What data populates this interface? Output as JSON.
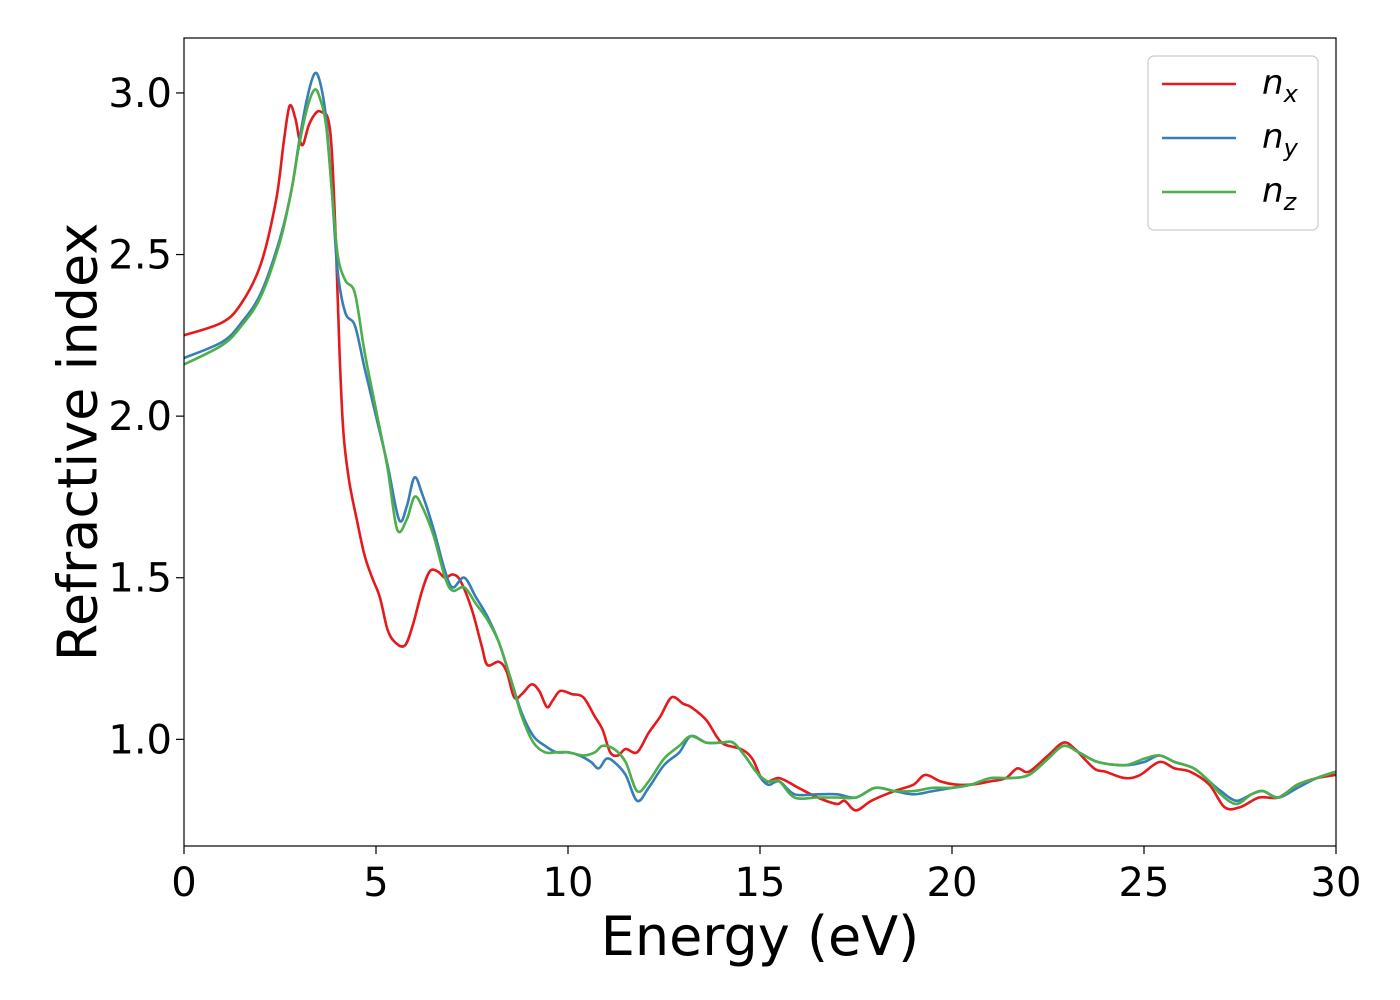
{
  "chart_data": {
    "type": "line",
    "xlabel": "Energy (eV)",
    "ylabel": "Refractive index",
    "xlim": [
      0,
      30
    ],
    "ylim": [
      0.67,
      3.17
    ],
    "x_ticks": [
      0,
      5,
      10,
      15,
      20,
      25,
      30
    ],
    "x_tick_labels": [
      "0",
      "5",
      "10",
      "15",
      "20",
      "25",
      "30"
    ],
    "y_ticks": [
      1.0,
      1.5,
      2.0,
      2.5,
      3.0
    ],
    "y_tick_labels": [
      "1.0",
      "1.5",
      "2.0",
      "2.5",
      "3.0"
    ],
    "grid": false,
    "legend_position": "top-right",
    "series": [
      {
        "name": "n_x",
        "label_base": "n",
        "label_sub": "x",
        "color": "#e41a1c",
        "points": [
          [
            0,
            2.25
          ],
          [
            1,
            2.29
          ],
          [
            1.5,
            2.35
          ],
          [
            2,
            2.47
          ],
          [
            2.4,
            2.67
          ],
          [
            2.6,
            2.85
          ],
          [
            2.75,
            2.96
          ],
          [
            2.9,
            2.92
          ],
          [
            3.0,
            2.86
          ],
          [
            3.1,
            2.84
          ],
          [
            3.25,
            2.9
          ],
          [
            3.45,
            2.94
          ],
          [
            3.6,
            2.94
          ],
          [
            3.75,
            2.92
          ],
          [
            3.85,
            2.82
          ],
          [
            3.95,
            2.55
          ],
          [
            4.05,
            2.2
          ],
          [
            4.15,
            1.95
          ],
          [
            4.3,
            1.8
          ],
          [
            4.5,
            1.68
          ],
          [
            4.7,
            1.57
          ],
          [
            4.9,
            1.5
          ],
          [
            5.1,
            1.44
          ],
          [
            5.3,
            1.34
          ],
          [
            5.5,
            1.3
          ],
          [
            5.75,
            1.29
          ],
          [
            5.95,
            1.35
          ],
          [
            6.2,
            1.46
          ],
          [
            6.4,
            1.52
          ],
          [
            6.6,
            1.52
          ],
          [
            6.8,
            1.5
          ],
          [
            7.0,
            1.51
          ],
          [
            7.2,
            1.49
          ],
          [
            7.5,
            1.4
          ],
          [
            7.75,
            1.29
          ],
          [
            7.9,
            1.23
          ],
          [
            8.2,
            1.24
          ],
          [
            8.4,
            1.21
          ],
          [
            8.6,
            1.13
          ],
          [
            8.8,
            1.14
          ],
          [
            9.05,
            1.17
          ],
          [
            9.25,
            1.15
          ],
          [
            9.45,
            1.1
          ],
          [
            9.6,
            1.12
          ],
          [
            9.8,
            1.15
          ],
          [
            10.1,
            1.14
          ],
          [
            10.4,
            1.13
          ],
          [
            10.7,
            1.07
          ],
          [
            10.9,
            1.03
          ],
          [
            11.1,
            0.96
          ],
          [
            11.3,
            0.95
          ],
          [
            11.5,
            0.97
          ],
          [
            11.8,
            0.96
          ],
          [
            12.1,
            1.02
          ],
          [
            12.4,
            1.07
          ],
          [
            12.7,
            1.13
          ],
          [
            13.0,
            1.11
          ],
          [
            13.2,
            1.1
          ],
          [
            13.6,
            1.06
          ],
          [
            14.0,
            0.99
          ],
          [
            14.5,
            0.97
          ],
          [
            14.8,
            0.94
          ],
          [
            15.1,
            0.87
          ],
          [
            15.5,
            0.88
          ],
          [
            16.0,
            0.85
          ],
          [
            16.5,
            0.82
          ],
          [
            17.0,
            0.8
          ],
          [
            17.2,
            0.81
          ],
          [
            17.5,
            0.78
          ],
          [
            17.9,
            0.81
          ],
          [
            18.5,
            0.84
          ],
          [
            19.0,
            0.86
          ],
          [
            19.3,
            0.89
          ],
          [
            19.7,
            0.87
          ],
          [
            20.1,
            0.86
          ],
          [
            20.5,
            0.86
          ],
          [
            21.0,
            0.87
          ],
          [
            21.4,
            0.88
          ],
          [
            21.7,
            0.91
          ],
          [
            22.0,
            0.9
          ],
          [
            22.5,
            0.95
          ],
          [
            22.9,
            0.99
          ],
          [
            23.2,
            0.97
          ],
          [
            23.7,
            0.91
          ],
          [
            24.0,
            0.9
          ],
          [
            24.5,
            0.88
          ],
          [
            24.9,
            0.89
          ],
          [
            25.4,
            0.93
          ],
          [
            25.8,
            0.91
          ],
          [
            26.2,
            0.9
          ],
          [
            26.7,
            0.86
          ],
          [
            27.1,
            0.79
          ],
          [
            27.5,
            0.79
          ],
          [
            28.0,
            0.82
          ],
          [
            28.5,
            0.82
          ],
          [
            29.0,
            0.86
          ],
          [
            29.5,
            0.88
          ],
          [
            30.0,
            0.89
          ]
        ]
      },
      {
        "name": "n_y",
        "label_base": "n",
        "label_sub": "y",
        "color": "#377eb8",
        "points": [
          [
            0,
            2.18
          ],
          [
            1,
            2.23
          ],
          [
            1.5,
            2.29
          ],
          [
            2,
            2.38
          ],
          [
            2.5,
            2.55
          ],
          [
            2.8,
            2.7
          ],
          [
            3.0,
            2.85
          ],
          [
            3.2,
            2.98
          ],
          [
            3.4,
            3.06
          ],
          [
            3.55,
            3.03
          ],
          [
            3.7,
            2.92
          ],
          [
            3.85,
            2.7
          ],
          [
            4.0,
            2.45
          ],
          [
            4.2,
            2.32
          ],
          [
            4.45,
            2.28
          ],
          [
            4.7,
            2.15
          ],
          [
            5.0,
            2.0
          ],
          [
            5.3,
            1.85
          ],
          [
            5.6,
            1.68
          ],
          [
            5.8,
            1.72
          ],
          [
            6.0,
            1.81
          ],
          [
            6.2,
            1.76
          ],
          [
            6.5,
            1.65
          ],
          [
            6.8,
            1.52
          ],
          [
            7.0,
            1.47
          ],
          [
            7.3,
            1.5
          ],
          [
            7.6,
            1.44
          ],
          [
            7.9,
            1.38
          ],
          [
            8.2,
            1.3
          ],
          [
            8.5,
            1.19
          ],
          [
            8.8,
            1.08
          ],
          [
            9.1,
            1.01
          ],
          [
            9.4,
            0.98
          ],
          [
            9.7,
            0.96
          ],
          [
            10.0,
            0.96
          ],
          [
            10.3,
            0.95
          ],
          [
            10.6,
            0.93
          ],
          [
            10.8,
            0.91
          ],
          [
            11.0,
            0.94
          ],
          [
            11.2,
            0.93
          ],
          [
            11.5,
            0.89
          ],
          [
            11.8,
            0.81
          ],
          [
            12.1,
            0.85
          ],
          [
            12.5,
            0.92
          ],
          [
            12.9,
            0.96
          ],
          [
            13.2,
            1.01
          ],
          [
            13.6,
            0.99
          ],
          [
            14.0,
            0.99
          ],
          [
            14.3,
            0.99
          ],
          [
            14.6,
            0.95
          ],
          [
            14.9,
            0.9
          ],
          [
            15.2,
            0.86
          ],
          [
            15.5,
            0.87
          ],
          [
            15.9,
            0.83
          ],
          [
            16.5,
            0.83
          ],
          [
            17.0,
            0.83
          ],
          [
            17.5,
            0.82
          ],
          [
            18.0,
            0.85
          ],
          [
            18.5,
            0.84
          ],
          [
            19.0,
            0.83
          ],
          [
            19.5,
            0.84
          ],
          [
            20.0,
            0.85
          ],
          [
            20.5,
            0.86
          ],
          [
            21.0,
            0.88
          ],
          [
            21.5,
            0.88
          ],
          [
            22.0,
            0.89
          ],
          [
            22.5,
            0.94
          ],
          [
            22.9,
            0.98
          ],
          [
            23.3,
            0.96
          ],
          [
            23.8,
            0.93
          ],
          [
            24.5,
            0.92
          ],
          [
            25.0,
            0.93
          ],
          [
            25.4,
            0.95
          ],
          [
            25.8,
            0.93
          ],
          [
            26.3,
            0.91
          ],
          [
            26.7,
            0.87
          ],
          [
            27.0,
            0.84
          ],
          [
            27.4,
            0.81
          ],
          [
            27.8,
            0.83
          ],
          [
            28.1,
            0.84
          ],
          [
            28.5,
            0.82
          ],
          [
            29.0,
            0.85
          ],
          [
            29.5,
            0.88
          ],
          [
            30.0,
            0.9
          ]
        ]
      },
      {
        "name": "n_z",
        "label_base": "n",
        "label_sub": "z",
        "color": "#4daf4a",
        "points": [
          [
            0,
            2.16
          ],
          [
            1,
            2.22
          ],
          [
            1.5,
            2.28
          ],
          [
            2,
            2.37
          ],
          [
            2.5,
            2.54
          ],
          [
            2.8,
            2.7
          ],
          [
            3.0,
            2.84
          ],
          [
            3.2,
            2.95
          ],
          [
            3.4,
            3.01
          ],
          [
            3.55,
            2.98
          ],
          [
            3.7,
            2.9
          ],
          [
            3.85,
            2.7
          ],
          [
            4.0,
            2.5
          ],
          [
            4.2,
            2.42
          ],
          [
            4.45,
            2.38
          ],
          [
            4.7,
            2.2
          ],
          [
            5.0,
            2.02
          ],
          [
            5.3,
            1.84
          ],
          [
            5.55,
            1.65
          ],
          [
            5.8,
            1.68
          ],
          [
            6.0,
            1.75
          ],
          [
            6.2,
            1.72
          ],
          [
            6.5,
            1.63
          ],
          [
            6.8,
            1.5
          ],
          [
            7.0,
            1.46
          ],
          [
            7.3,
            1.47
          ],
          [
            7.6,
            1.42
          ],
          [
            7.9,
            1.37
          ],
          [
            8.2,
            1.3
          ],
          [
            8.5,
            1.19
          ],
          [
            8.8,
            1.07
          ],
          [
            9.1,
            0.99
          ],
          [
            9.4,
            0.96
          ],
          [
            9.7,
            0.96
          ],
          [
            10.0,
            0.96
          ],
          [
            10.4,
            0.95
          ],
          [
            10.7,
            0.96
          ],
          [
            10.9,
            0.98
          ],
          [
            11.2,
            0.97
          ],
          [
            11.5,
            0.93
          ],
          [
            11.8,
            0.84
          ],
          [
            12.1,
            0.87
          ],
          [
            12.5,
            0.94
          ],
          [
            12.9,
            0.98
          ],
          [
            13.2,
            1.01
          ],
          [
            13.6,
            0.99
          ],
          [
            14.0,
            0.99
          ],
          [
            14.3,
            0.99
          ],
          [
            14.6,
            0.95
          ],
          [
            14.9,
            0.9
          ],
          [
            15.2,
            0.87
          ],
          [
            15.5,
            0.87
          ],
          [
            15.9,
            0.82
          ],
          [
            16.5,
            0.82
          ],
          [
            17.0,
            0.82
          ],
          [
            17.5,
            0.82
          ],
          [
            18.0,
            0.85
          ],
          [
            18.5,
            0.84
          ],
          [
            19.0,
            0.84
          ],
          [
            19.5,
            0.85
          ],
          [
            20.0,
            0.85
          ],
          [
            20.5,
            0.86
          ],
          [
            21.0,
            0.88
          ],
          [
            21.5,
            0.88
          ],
          [
            22.0,
            0.89
          ],
          [
            22.5,
            0.94
          ],
          [
            22.9,
            0.98
          ],
          [
            23.3,
            0.96
          ],
          [
            23.8,
            0.93
          ],
          [
            24.5,
            0.92
          ],
          [
            25.0,
            0.94
          ],
          [
            25.4,
            0.95
          ],
          [
            25.8,
            0.93
          ],
          [
            26.3,
            0.91
          ],
          [
            26.7,
            0.87
          ],
          [
            27.0,
            0.83
          ],
          [
            27.4,
            0.8
          ],
          [
            27.8,
            0.83
          ],
          [
            28.1,
            0.84
          ],
          [
            28.5,
            0.82
          ],
          [
            29.0,
            0.86
          ],
          [
            29.5,
            0.88
          ],
          [
            30.0,
            0.9
          ]
        ]
      }
    ]
  }
}
